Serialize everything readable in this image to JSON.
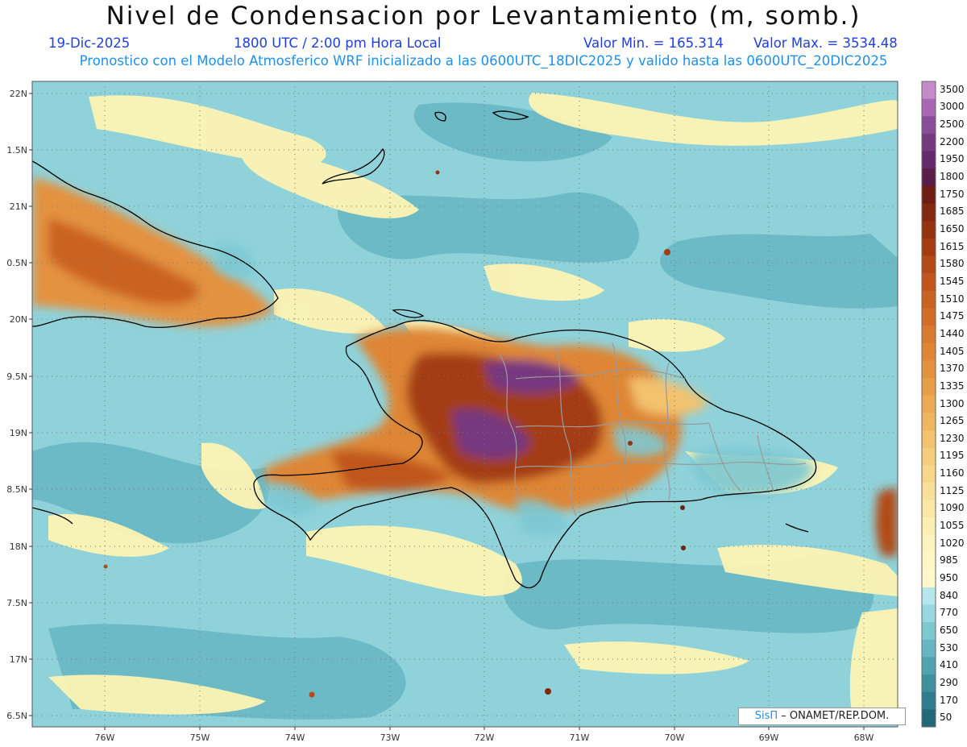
{
  "title": "Nivel de Condensacion por Levantamiento (m, somb.)",
  "date": "19-Dic-2025",
  "time": "1800 UTC / 2:00 pm Hora Local",
  "min_label": "Valor Min. = 165.314",
  "max_label": "Valor Max. = 3534.48",
  "forecast_line": "Pronostico con el Modelo Atmosferico WRF inicializado a las 0600UTC_18DIC2025 y valido hasta las  0600UTC_20DIC2025",
  "lat_ticks": [
    "22N",
    "1.5N",
    "21N",
    "0.5N",
    "20N",
    "9.5N",
    "19N",
    "8.5N",
    "18N",
    "7.5N",
    "17N",
    "6.5N"
  ],
  "lon_ticks": [
    "76W",
    "75W",
    "74W",
    "73W",
    "72W",
    "71W",
    "70W",
    "69W",
    "68W"
  ],
  "colorbar": {
    "labels": [
      "3500",
      "3000",
      "2500",
      "2200",
      "1950",
      "1800",
      "1750",
      "1685",
      "1650",
      "1615",
      "1580",
      "1545",
      "1510",
      "1475",
      "1440",
      "1405",
      "1370",
      "1335",
      "1300",
      "1265",
      "1230",
      "1195",
      "1160",
      "1125",
      "1090",
      "1055",
      "1020",
      "985",
      "950",
      "840",
      "770",
      "650",
      "530",
      "410",
      "290",
      "170",
      "50"
    ],
    "colors": [
      "#c58ac8",
      "#a868b2",
      "#8a4c98",
      "#76397f",
      "#652a6b",
      "#5a1c48",
      "#6e1f12",
      "#82280f",
      "#94330f",
      "#a43e12",
      "#b34a17",
      "#c0561c",
      "#ca6222",
      "#d26e28",
      "#d97a2e",
      "#de8636",
      "#e3923f",
      "#e89e48",
      "#ecaa54",
      "#efb661",
      "#f2c26e",
      "#f5cd7c",
      "#f7d78a",
      "#f9e098",
      "#fbe8a6",
      "#fcefb2",
      "#fdf3bc",
      "#fef6c4",
      "#fef8cb",
      "#b4e6ec",
      "#98d8e0",
      "#7ec8d2",
      "#66b6c2",
      "#52a3b1",
      "#3f909f",
      "#2e7c8d",
      "#216878"
    ]
  },
  "credit": {
    "sis": "SisΠ",
    "rest": "– ONAMET/REP.DOM."
  }
}
